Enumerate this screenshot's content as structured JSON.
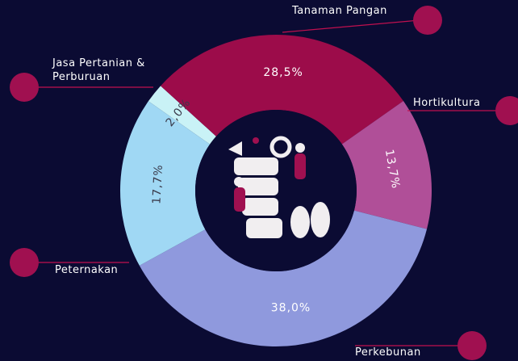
{
  "chart_data": {
    "type": "donut",
    "categories": [
      "Jasa Pertanian & Perburuan",
      "Tanaman Pangan",
      "Hortikultura",
      "Perkebunan",
      "Peternakan"
    ],
    "values": [
      2.0,
      28.5,
      13.7,
      38.0,
      17.7
    ],
    "value_labels": [
      "2,0%",
      "28,5%",
      "13,7%",
      "38,0%",
      "17,7%"
    ],
    "colors": [
      "#c9f2f6",
      "#9c0c4a",
      "#b04f98",
      "#8f99dd",
      "#a0d8f4"
    ]
  }
}
